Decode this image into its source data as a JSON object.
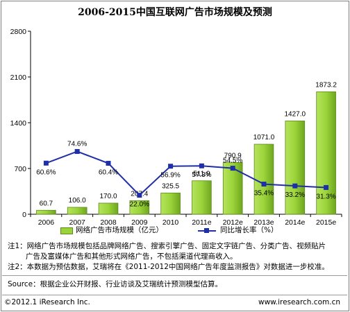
{
  "chart_data": {
    "type": "bar",
    "title": "2006-2015中国互联网广告市场规模及预测",
    "categories": [
      "2006",
      "2007",
      "2008",
      "2009",
      "2010",
      "2011e",
      "2012e",
      "2013e",
      "2014e",
      "2015e"
    ],
    "series": [
      {
        "name": "网络广告市场规模（亿元）",
        "type": "bar",
        "axis": "left",
        "values": [
          60.7,
          106.0,
          170.0,
          207.4,
          325.5,
          511.9,
          790.9,
          1071.0,
          1427.0,
          1873.2
        ],
        "labels": [
          "60.7",
          "106.0",
          "170.0",
          "207.4",
          "325.5",
          "511.9",
          "790.9",
          "1071.0",
          "1427.0",
          "1873.2"
        ],
        "color": "#9bd43a"
      },
      {
        "name": "同比增长率（%）",
        "type": "line",
        "axis": "right-hidden",
        "values": [
          60.6,
          74.6,
          60.4,
          22.0,
          56.9,
          57.3,
          54.5,
          35.4,
          33.2,
          31.3
        ],
        "labels": [
          "60.6%",
          "74.6%",
          "60.4%",
          "22.0%",
          "56.9%",
          "57.3%",
          "54.5%",
          "35.4%",
          "33.2%",
          "31.3%"
        ],
        "color": "#1f2fa8"
      }
    ],
    "y_ticks": [
      "0",
      "700",
      "1400",
      "2100",
      "2800"
    ],
    "ylim": [
      0,
      2800
    ],
    "legend_position": "bottom"
  },
  "notes": {
    "note1_line1": "注1：网络广告市场规模包括品牌网络广告、搜索引擎广告、固定文字链广告、分类广告、视频贴片",
    "note1_line2": "广告及富媒体广告和其他形式网络广告，不包括渠道代理商收入。",
    "note2": "注2：本数据为预估数据，艾瑞将在《2011-2012中国网络广告年度监测报告》对数据进一步校准。"
  },
  "source": "Source：根据企业公开财报、行业访谈及艾瑞统计预测模型估算。",
  "footer": {
    "copyright": "©2012.1 iResearch Inc.",
    "website": "www.iresearch.com.cn"
  }
}
